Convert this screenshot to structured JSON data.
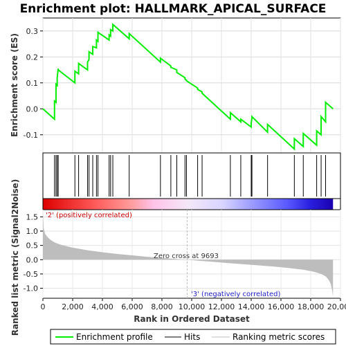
{
  "chart_data": {
    "type": "line",
    "title": "Enrichment plot: HALLMARK_APICAL_SURFACE",
    "xlabel": "Rank in Ordered Dataset",
    "ylabel_top": "Enrichment score (ES)",
    "ylabel_bottom": "Ranked list metric (Signal2Noise)",
    "x_range": [
      0,
      20000
    ],
    "n_genes": 19500,
    "x_ticks": [
      "0",
      "2,000",
      "4,000",
      "6,000",
      "8,000",
      "10,000",
      "12,000",
      "14,000",
      "16,000",
      "18,000",
      "20,000"
    ],
    "es_ylim": [
      -0.17,
      0.35
    ],
    "es_ticks": [
      "-0.1",
      "0.0",
      "0.1",
      "0.2",
      "0.3"
    ],
    "metric_ylim": [
      -1.35,
      1.75
    ],
    "metric_ticks": [
      "-1.0",
      "-0.5",
      "0.0",
      "0.5",
      "1.0",
      "1.5"
    ],
    "zero_cross": 9693,
    "zero_cross_label": "Zero cross at 9693",
    "pos_label": "'2' (positively correlated)",
    "neg_label": "'3' (negatively correlated)",
    "hits": [
      780,
      880,
      960,
      1030,
      2150,
      2400,
      3000,
      3100,
      3350,
      3600,
      3700,
      4450,
      4550,
      4700,
      5800,
      7900,
      8600,
      9000,
      9550,
      9650,
      10400,
      10700,
      12600,
      13300,
      14000,
      14050,
      15100,
      16900,
      17500,
      18400,
      18700,
      19000
    ],
    "es_curve": {
      "x": [
        0,
        780,
        780,
        880,
        880,
        960,
        960,
        1030,
        1030,
        2150,
        2150,
        2400,
        2400,
        3000,
        3000,
        3100,
        3100,
        3350,
        3350,
        3600,
        3600,
        3700,
        3700,
        4450,
        4450,
        4550,
        4550,
        4700,
        4700,
        5800,
        5800,
        7900,
        7900,
        8600,
        8600,
        9000,
        9000,
        9550,
        9550,
        9650,
        9650,
        10400,
        10400,
        10700,
        10700,
        12600,
        12600,
        13300,
        13300,
        14000,
        14000,
        14050,
        14050,
        15100,
        15100,
        16900,
        16900,
        17500,
        17500,
        18400,
        18400,
        18700,
        18700,
        19000,
        19000,
        19500
      ],
      "y": [
        0.0,
        -0.04,
        0.03,
        0.025,
        0.095,
        0.09,
        0.12,
        0.155,
        0.15,
        0.1,
        0.145,
        0.135,
        0.175,
        0.15,
        0.18,
        0.19,
        0.22,
        0.21,
        0.24,
        0.235,
        0.265,
        0.26,
        0.295,
        0.265,
        0.285,
        0.28,
        0.305,
        0.3,
        0.325,
        0.27,
        0.29,
        0.18,
        0.195,
        0.165,
        0.16,
        0.15,
        0.14,
        0.12,
        0.115,
        0.11,
        0.108,
        0.08,
        0.075,
        0.065,
        0.06,
        -0.04,
        -0.015,
        -0.05,
        -0.04,
        -0.07,
        -0.055,
        -0.035,
        -0.03,
        -0.09,
        -0.06,
        -0.155,
        -0.115,
        -0.145,
        -0.095,
        -0.14,
        -0.085,
        -0.1,
        -0.03,
        -0.05,
        0.025,
        0.0
      ]
    },
    "metric_curve": {
      "x": [
        0,
        50,
        150,
        300,
        500,
        800,
        1200,
        2000,
        3000,
        4000,
        5000,
        6000,
        7000,
        8000,
        9000,
        9693,
        10500,
        11500,
        12500,
        13500,
        14500,
        15500,
        16500,
        17500,
        18200,
        18700,
        19000,
        19200,
        19350,
        19450,
        19500
      ],
      "y": [
        1.7,
        1.1,
        0.9,
        0.8,
        0.7,
        0.6,
        0.52,
        0.42,
        0.33,
        0.26,
        0.2,
        0.15,
        0.1,
        0.06,
        0.02,
        0.0,
        -0.04,
        -0.08,
        -0.12,
        -0.16,
        -0.2,
        -0.24,
        -0.29,
        -0.35,
        -0.42,
        -0.5,
        -0.58,
        -0.7,
        -0.85,
        -1.1,
        -1.3
      ]
    },
    "legend": [
      "Enrichment profile",
      "Hits",
      "Ranking metric scores"
    ]
  },
  "colors": {
    "es_line": "#00ee00",
    "hit_line": "#000000",
    "metric_fill": "#bdbdbd",
    "zero_line": "#bbbbbb",
    "pos_text": "#cc0000",
    "neg_text": "#2222cc"
  }
}
